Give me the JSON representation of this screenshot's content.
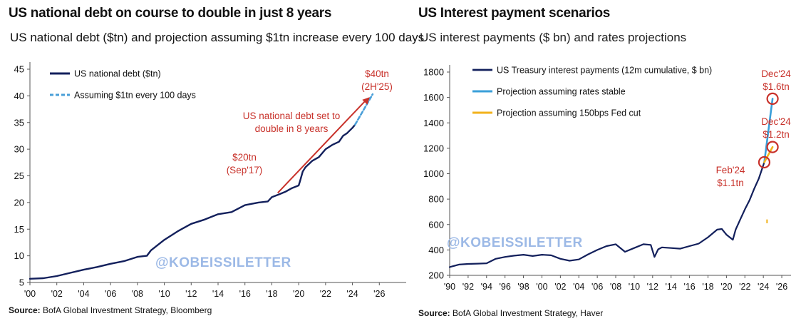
{
  "chart_data": [
    {
      "type": "line",
      "title": "US national debt on course to double in just 8 years",
      "subtitle": "US national debt ($tn) and projection assuming $1tn increase every 100 days",
      "source_label": "Source:",
      "source_text": " BofA Global Investment Strategy, Bloomberg",
      "watermark": "@KOBEISSILETTER",
      "xlabel": "",
      "ylabel": "",
      "xlim": [
        2000,
        2028
      ],
      "ylim": [
        5,
        45
      ],
      "yticks": [
        5,
        10,
        15,
        20,
        25,
        30,
        35,
        40,
        45
      ],
      "xticks": [
        2000,
        2002,
        2004,
        2006,
        2008,
        2010,
        2012,
        2014,
        2016,
        2018,
        2020,
        2022,
        2024,
        2026
      ],
      "xtick_labels": [
        "'00",
        "'02",
        "'04",
        "'06",
        "'08",
        "'10",
        "'12",
        "'14",
        "'16",
        "'18",
        "'20",
        "'22",
        "'24",
        "'26"
      ],
      "grid": false,
      "legend_position": "top-left",
      "colors": {
        "debt": "#13205c",
        "projection": "#4a9fd8",
        "annotation": "#c8312a"
      },
      "series": [
        {
          "name": "US national debt ($tn)",
          "style": "solid",
          "x": [
            2000,
            2001,
            2002,
            2003,
            2004,
            2005,
            2006,
            2007,
            2008,
            2008.7,
            2009,
            2010,
            2011,
            2012,
            2013,
            2014,
            2015,
            2016,
            2017,
            2017.7,
            2018,
            2018.5,
            2019,
            2019.5,
            2020,
            2020.1,
            2020.3,
            2020.5,
            2021,
            2021.5,
            2022,
            2022.5,
            2023,
            2023.3,
            2023.6,
            2024,
            2024.2
          ],
          "y": [
            5.7,
            5.8,
            6.2,
            6.8,
            7.4,
            7.9,
            8.5,
            9.0,
            9.8,
            10.0,
            11.0,
            13.0,
            14.6,
            16.0,
            16.8,
            17.8,
            18.2,
            19.5,
            20.0,
            20.2,
            21.0,
            21.5,
            22.0,
            22.7,
            23.2,
            24.0,
            25.8,
            26.6,
            27.8,
            28.5,
            30.0,
            30.8,
            31.4,
            32.5,
            33.0,
            34.0,
            34.6
          ]
        },
        {
          "name": "Assuming $1tn every 100 days",
          "style": "dashed",
          "x": [
            2024.2,
            2025.5
          ],
          "y": [
            34.6,
            40.3
          ]
        }
      ],
      "annotations": [
        {
          "text_line1": "$20tn",
          "text_line2": "(Sep'17)"
        },
        {
          "text_line1": "US national debt set to",
          "text_line2": "double in 8 years"
        },
        {
          "text_line1": "$40tn",
          "text_line2": "(2H'25)"
        }
      ]
    },
    {
      "type": "line",
      "title": "US Interest payment scenarios",
      "subtitle": "US interest payments ($ bn) and rates projections",
      "source_label": "Source:",
      "source_text": " BofA Global Investment Strategy, Haver",
      "watermark": "@KOBEISSILETTER",
      "xlabel": "",
      "ylabel": "",
      "xlim": [
        1990,
        2027
      ],
      "ylim": [
        200,
        1800
      ],
      "yticks": [
        200,
        400,
        600,
        800,
        1000,
        1200,
        1400,
        1600,
        1800
      ],
      "xticks": [
        1990,
        1992,
        1994,
        1996,
        1998,
        2000,
        2002,
        2004,
        2006,
        2008,
        2010,
        2012,
        2014,
        2016,
        2018,
        2020,
        2022,
        2024,
        2026
      ],
      "xtick_labels": [
        "'90",
        "'92",
        "'94",
        "'96",
        "'98",
        "'00",
        "'02",
        "'04",
        "'06",
        "'08",
        "'10",
        "'12",
        "'14",
        "'16",
        "'18",
        "'20",
        "'22",
        "'24",
        "'26"
      ],
      "grid": false,
      "legend_position": "top-left",
      "colors": {
        "actual": "#13205c",
        "stable": "#3a9fd9",
        "cut": "#f2b21b",
        "annotation": "#c8312a"
      },
      "series": [
        {
          "name": "US Treasury interest payments (12m cumulative, $ bn)",
          "x": [
            1990,
            1991,
            1992,
            1993,
            1994,
            1995,
            1996,
            1997,
            1998,
            1999,
            2000,
            2001,
            2002,
            2003,
            2004,
            2005,
            2006,
            2007,
            2008,
            2009,
            2010,
            2011,
            2011.8,
            2012.2,
            2012.6,
            2013,
            2014,
            2015,
            2016,
            2017,
            2018,
            2019,
            2019.5,
            2020,
            2020.7,
            2021,
            2021.5,
            2022,
            2022.5,
            2023,
            2023.5,
            2024.1
          ],
          "y": [
            265,
            285,
            290,
            292,
            295,
            330,
            345,
            355,
            362,
            352,
            362,
            358,
            330,
            315,
            325,
            365,
            400,
            430,
            445,
            385,
            415,
            445,
            440,
            345,
            405,
            420,
            415,
            410,
            430,
            450,
            500,
            560,
            565,
            520,
            480,
            560,
            640,
            720,
            790,
            880,
            960,
            1090
          ]
        },
        {
          "name": "Projection assuming rates stable",
          "x": [
            2024.1,
            2025.0
          ],
          "y": [
            1090,
            1590
          ]
        },
        {
          "name": "Projection assuming 150bps Fed cut",
          "x": [
            2024.1,
            2025.0
          ],
          "y": [
            1090,
            1210
          ]
        }
      ],
      "annotations": [
        {
          "text_line1": "Feb'24",
          "text_line2": "$1.1tn",
          "x": 2024.1,
          "y": 1090
        },
        {
          "text_line1": "Dec'24",
          "text_line2": "$1.6tn",
          "x": 2025.0,
          "y": 1590
        },
        {
          "text_line1": "Dec'24",
          "text_line2": "$1.2tn",
          "x": 2025.0,
          "y": 1210
        }
      ]
    }
  ]
}
